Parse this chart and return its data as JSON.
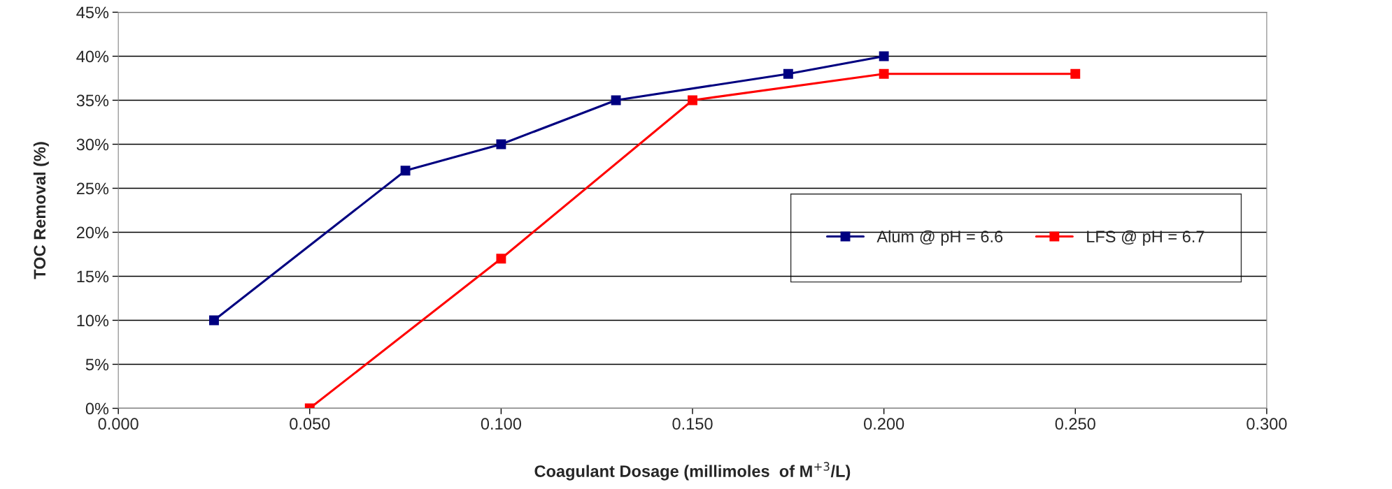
{
  "chart_data": {
    "type": "line",
    "xlabel": "Coagulant Dosage (millimoles  of M$^{+3}$/L)",
    "ylabel": "TOC Removal (%)",
    "series": [
      {
        "name": "Alum @ pH = 6.6",
        "color": "#000080",
        "x": [
          0.025,
          0.075,
          0.1,
          0.13,
          0.175,
          0.2
        ],
        "values": [
          10,
          27,
          30,
          35,
          38,
          40
        ]
      },
      {
        "name": "LFS @ pH = 6.7",
        "color": "#ff0000",
        "x": [
          0.05,
          0.1,
          0.15,
          0.2,
          0.25
        ],
        "values": [
          0,
          17,
          35,
          38,
          38
        ]
      }
    ],
    "xlim": [
      0,
      0.3
    ],
    "xticks": [
      {
        "value": 0,
        "label": "0.000"
      },
      {
        "value": 0.05,
        "label": "0.050"
      },
      {
        "value": 0.1,
        "label": "0.100"
      },
      {
        "value": 0.15,
        "label": "0.150"
      },
      {
        "value": 0.2,
        "label": "0.200"
      },
      {
        "value": 0.25,
        "label": "0.250"
      },
      {
        "value": 0.3,
        "label": "0.300"
      }
    ],
    "ylim": [
      0,
      45
    ],
    "yticks": [
      {
        "value": 0,
        "label": "0%"
      },
      {
        "value": 5,
        "label": "5%"
      },
      {
        "value": 10,
        "label": "10%"
      },
      {
        "value": 15,
        "label": "15%"
      },
      {
        "value": 20,
        "label": "20%"
      },
      {
        "value": 25,
        "label": "25%"
      },
      {
        "value": 30,
        "label": "30%"
      },
      {
        "value": 35,
        "label": "35%"
      },
      {
        "value": 40,
        "label": "40%"
      },
      {
        "value": 45,
        "label": "45%"
      }
    ],
    "grid": "y",
    "legend": "center right",
    "marker": "square",
    "line_style": "solid"
  }
}
